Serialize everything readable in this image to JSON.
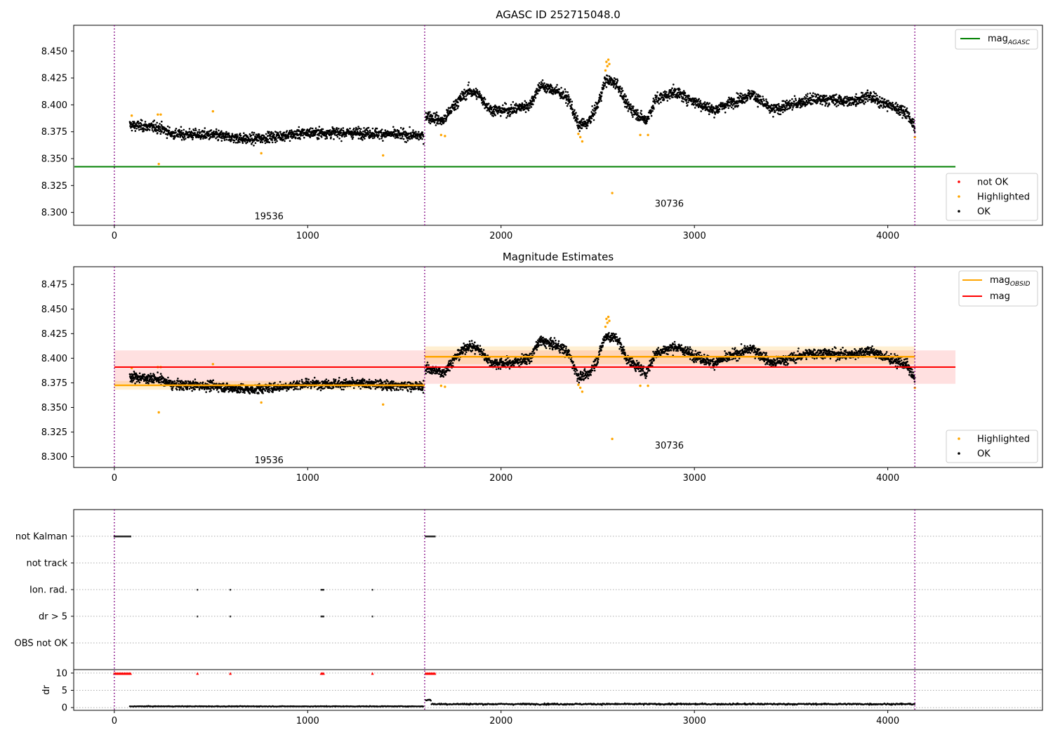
{
  "chart_data": [
    {
      "type": "scatter",
      "title": "AGASC ID 252715048.0",
      "xlabel": "",
      "ylabel": "",
      "xlim": [
        -210,
        4800
      ],
      "ylim": [
        8.288,
        8.474
      ],
      "xticks": [
        0,
        1000,
        2000,
        3000,
        4000
      ],
      "xtick_labels": [
        "0",
        "1000",
        "2000",
        "3000",
        "4000"
      ],
      "yticks": [
        8.3,
        8.325,
        8.35,
        8.375,
        8.4,
        8.425,
        8.45
      ],
      "ytick_labels": [
        "8.300",
        "8.325",
        "8.350",
        "8.375",
        "8.400",
        "8.425",
        "8.450"
      ],
      "obs_boundaries": [
        0,
        1605,
        4140
      ],
      "obsid_labels": [
        {
          "x": 800,
          "y": 8.296,
          "text": "19536"
        },
        {
          "x": 2870,
          "y": 8.308,
          "text": "30736"
        }
      ],
      "mag_agasc": {
        "value": 8.3425,
        "x_range": [
          -210,
          4350
        ],
        "color": "#008000"
      },
      "legend_line": {
        "label": "mag",
        "sub": "AGASC",
        "placement": "upper-right"
      },
      "legend": {
        "placement": "lower-right",
        "entries": [
          {
            "label": "not OK",
            "color": "#ff0000"
          },
          {
            "label": "Highlighted",
            "color": "#ffa500"
          },
          {
            "label": "OK",
            "color": "#000000"
          }
        ]
      },
      "series_ok": {
        "segments": [
          {
            "x_start": 80,
            "x_end": 1600,
            "profile": [
              [
                80,
                8.381
              ],
              [
                230,
                8.379
              ],
              [
                300,
                8.373
              ],
              [
                500,
                8.372
              ],
              [
                700,
                8.368
              ],
              [
                1000,
                8.374
              ],
              [
                1300,
                8.374
              ],
              [
                1600,
                8.371
              ]
            ],
            "noise": 0.0055
          },
          {
            "x_start": 1610,
            "x_end": 4140,
            "profile": [
              [
                1610,
                8.39
              ],
              [
                1700,
                8.385
              ],
              [
                1760,
                8.4
              ],
              [
                1830,
                8.413
              ],
              [
                1880,
                8.41
              ],
              [
                1950,
                8.395
              ],
              [
                2050,
                8.395
              ],
              [
                2150,
                8.4
              ],
              [
                2200,
                8.418
              ],
              [
                2300,
                8.412
              ],
              [
                2350,
                8.405
              ],
              [
                2400,
                8.381
              ],
              [
                2450,
                8.383
              ],
              [
                2500,
                8.4
              ],
              [
                2540,
                8.423
              ],
              [
                2600,
                8.42
              ],
              [
                2650,
                8.4
              ],
              [
                2700,
                8.392
              ],
              [
                2750,
                8.385
              ],
              [
                2800,
                8.405
              ],
              [
                2900,
                8.412
              ],
              [
                3000,
                8.403
              ],
              [
                3100,
                8.395
              ],
              [
                3200,
                8.403
              ],
              [
                3300,
                8.41
              ],
              [
                3400,
                8.395
              ],
              [
                3500,
                8.4
              ],
              [
                3600,
                8.405
              ],
              [
                3700,
                8.405
              ],
              [
                3800,
                8.403
              ],
              [
                3900,
                8.408
              ],
              [
                4000,
                8.4
              ],
              [
                4100,
                8.393
              ],
              [
                4140,
                8.378
              ]
            ],
            "noise": 0.006
          }
        ]
      },
      "series_highlighted": {
        "x": [
          90,
          225,
          240,
          230,
          510,
          760,
          1390,
          2410,
          2420,
          2400,
          2540,
          2550,
          2560,
          2545,
          2555,
          2575,
          2720,
          2760,
          1690,
          1710,
          4140
        ],
        "y": [
          8.39,
          8.391,
          8.391,
          8.345,
          8.394,
          8.355,
          8.353,
          8.37,
          8.366,
          8.373,
          8.432,
          8.436,
          8.438,
          8.44,
          8.442,
          8.318,
          8.372,
          8.372,
          8.372,
          8.371,
          8.37
        ]
      }
    },
    {
      "type": "scatter",
      "title": "Magnitude Estimates",
      "xlabel": "",
      "ylabel": "",
      "xlim": [
        -210,
        4800
      ],
      "ylim": [
        8.289,
        8.493
      ],
      "xticks": [
        0,
        1000,
        2000,
        3000,
        4000
      ],
      "xtick_labels": [
        "0",
        "1000",
        "2000",
        "3000",
        "4000"
      ],
      "yticks": [
        8.3,
        8.325,
        8.35,
        8.375,
        8.4,
        8.425,
        8.45,
        8.475
      ],
      "ytick_labels": [
        "8.300",
        "8.325",
        "8.350",
        "8.375",
        "8.400",
        "8.425",
        "8.450",
        "8.475"
      ],
      "obs_boundaries": [
        0,
        1605,
        4140
      ],
      "obsid_labels": [
        {
          "x": 800,
          "y": 8.296,
          "text": "19536"
        },
        {
          "x": 2870,
          "y": 8.311,
          "text": "30736"
        }
      ],
      "mag": {
        "value": 8.391,
        "band": [
          8.374,
          8.408
        ],
        "x_range": [
          0,
          4350
        ],
        "color": "#ff0000"
      },
      "mag_obsid": [
        {
          "x_range": [
            0,
            1605
          ],
          "value": 8.3725,
          "band": [
            8.368,
            8.377
          ]
        },
        {
          "x_range": [
            1605,
            4140
          ],
          "value": 8.4015,
          "band": [
            8.394,
            8.412
          ]
        }
      ],
      "legend_lines": {
        "placement": "upper-right",
        "entries": [
          {
            "label": "mag",
            "sub": "OBSID",
            "color": "#ffa500"
          },
          {
            "label": "mag",
            "sub": "",
            "color": "#ff0000"
          }
        ]
      },
      "legend": {
        "placement": "lower-right",
        "entries": [
          {
            "label": "Highlighted",
            "color": "#ffa500"
          },
          {
            "label": "OK",
            "color": "#000000"
          }
        ]
      }
    },
    {
      "type": "scatter",
      "title": "",
      "xlabel": "",
      "xlim": [
        -210,
        4800
      ],
      "xticks": [
        0,
        1000,
        2000,
        3000,
        4000
      ],
      "xtick_labels": [
        "0",
        "1000",
        "2000",
        "3000",
        "4000"
      ],
      "flag_rows": [
        "not Kalman",
        "not track",
        "Ion. rad.",
        "dr > 5",
        "OBS not OK"
      ],
      "flags": {
        "not Kalman": [
          [
            0,
            85
          ],
          [
            1610,
            1660
          ]
        ],
        "not track": [],
        "Ion. rad.": [
          [
            430,
            430
          ],
          [
            600,
            600
          ],
          [
            1070,
            1085
          ],
          [
            1335,
            1335
          ]
        ],
        "dr > 5": [
          [
            430,
            430
          ],
          [
            600,
            600
          ],
          [
            1070,
            1085
          ],
          [
            1335,
            1335
          ]
        ],
        "OBS not OK": []
      },
      "dr": {
        "ylabel": "dr",
        "ylim": [
          -0.8,
          11.0
        ],
        "yticks": [
          0,
          5,
          10
        ],
        "ytick_labels": [
          "0",
          "5",
          "10"
        ],
        "triangle_groups": [
          [
            0,
            85
          ],
          [
            430,
            430
          ],
          [
            600,
            600
          ],
          [
            1070,
            1085
          ],
          [
            1335,
            1335
          ],
          [
            1610,
            1660
          ]
        ],
        "triangle_value": 9.9,
        "line_segments": [
          {
            "x_start": 80,
            "x_end": 1600,
            "value": 0.35,
            "noise": 0.15
          },
          {
            "x_start": 1610,
            "x_end": 4140,
            "value": 1.0,
            "noise": 0.35
          }
        ]
      }
    }
  ]
}
